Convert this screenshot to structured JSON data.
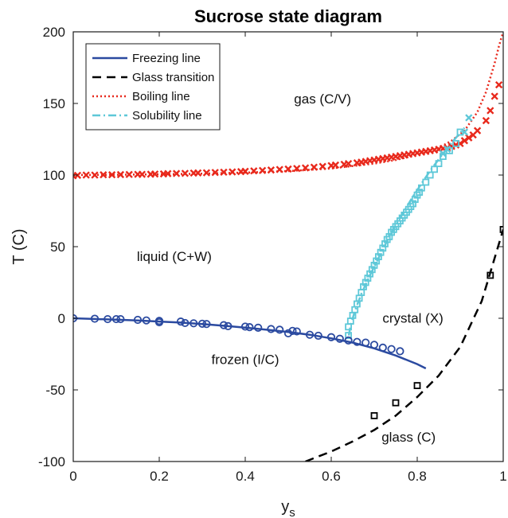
{
  "chart_data": {
    "type": "scatter",
    "title": "Sucrose state diagram",
    "xlabel": "y",
    "xlabel_sub": "s",
    "ylabel": "T (C)",
    "xlim": [
      0,
      1
    ],
    "ylim": [
      -100,
      200
    ],
    "xticks": [
      0,
      0.2,
      0.4,
      0.6,
      0.8,
      1
    ],
    "xtick_labels": [
      "0",
      "0.2",
      "0.4",
      "0.6",
      "0.8",
      "1"
    ],
    "yticks": [
      -100,
      -50,
      0,
      50,
      100,
      150,
      200
    ],
    "ytick_labels": [
      "-100",
      "-50",
      "0",
      "50",
      "100",
      "150",
      "200"
    ],
    "grid": false,
    "legend_position": "top-left",
    "legend": [
      {
        "label": "Freezing line",
        "color": "#2b4aa0",
        "style": "solid"
      },
      {
        "label": "Glass transition",
        "color": "#000000",
        "style": "dashed"
      },
      {
        "label": "Boiling line",
        "color": "#e8291c",
        "style": "dotted"
      },
      {
        "label": "Solubility line",
        "color": "#5ec8d8",
        "style": "dashdot"
      }
    ],
    "regions": [
      {
        "label": "gas (C/V)",
        "x": 0.58,
        "y": 150
      },
      {
        "label": "liquid (C+W)",
        "x": 0.235,
        "y": 40
      },
      {
        "label": "crystal (X)",
        "x": 0.79,
        "y": -3
      },
      {
        "label": "frozen (I/C)",
        "x": 0.4,
        "y": -32
      },
      {
        "label": "glass (C)",
        "x": 0.78,
        "y": -86
      }
    ],
    "series": [
      {
        "name": "Freezing line",
        "kind": "line",
        "color": "#2b4aa0",
        "style": "solid",
        "x": [
          0,
          0.05,
          0.1,
          0.15,
          0.2,
          0.25,
          0.3,
          0.35,
          0.4,
          0.45,
          0.5,
          0.55,
          0.6,
          0.65,
          0.7,
          0.75,
          0.8,
          0.82
        ],
        "y": [
          0,
          -0.5,
          -1,
          -1.5,
          -2.3,
          -3,
          -4,
          -5.2,
          -6.5,
          -8,
          -9.6,
          -11.5,
          -14,
          -17,
          -21,
          -26,
          -32,
          -35
        ]
      },
      {
        "name": "Freezing data",
        "kind": "markers",
        "marker": "circle",
        "color": "#2b4aa0",
        "x": [
          0,
          0.05,
          0.08,
          0.1,
          0.11,
          0.15,
          0.17,
          0.2,
          0.2,
          0.25,
          0.26,
          0.28,
          0.3,
          0.31,
          0.35,
          0.36,
          0.4,
          0.41,
          0.43,
          0.46,
          0.48,
          0.5,
          0.51,
          0.52,
          0.55,
          0.57,
          0.6,
          0.62,
          0.64,
          0.66,
          0.68,
          0.7,
          0.72,
          0.74,
          0.76
        ],
        "y": [
          0,
          -0.3,
          -0.6,
          -0.6,
          -0.6,
          -1.1,
          -1.5,
          -1.8,
          -2.8,
          -2.3,
          -3.3,
          -3.5,
          -3.8,
          -4,
          -4.8,
          -5.5,
          -5.8,
          -6.2,
          -6.6,
          -7.5,
          -8,
          -10.5,
          -8.8,
          -9.2,
          -11.5,
          -12.2,
          -13.2,
          -14.3,
          -15.5,
          -16.5,
          -17,
          -18.5,
          -20.5,
          -21.5,
          -23
        ]
      },
      {
        "name": "Glass transition",
        "kind": "line",
        "color": "#000000",
        "style": "dashed",
        "x": [
          0.54,
          0.6,
          0.65,
          0.7,
          0.75,
          0.8,
          0.85,
          0.9,
          0.95,
          1.0
        ],
        "y": [
          -100,
          -93,
          -86,
          -78,
          -68,
          -55,
          -40,
          -20,
          12,
          62
        ]
      },
      {
        "name": "Glass data",
        "kind": "markers",
        "marker": "square",
        "color": "#000000",
        "x": [
          0.7,
          0.75,
          0.8,
          0.97,
          1.0
        ],
        "y": [
          -68,
          -59,
          -47,
          30,
          62
        ]
      },
      {
        "name": "Boiling line",
        "kind": "line",
        "color": "#e8291c",
        "style": "dotted",
        "x": [
          0,
          0.1,
          0.2,
          0.3,
          0.4,
          0.5,
          0.6,
          0.7,
          0.75,
          0.8,
          0.85,
          0.88,
          0.91,
          0.94,
          0.96,
          0.98,
          0.99,
          1.0
        ],
        "y": [
          100,
          100.2,
          100.5,
          101,
          101.7,
          102.8,
          104.6,
          108,
          110.5,
          114,
          119,
          124,
          131,
          144,
          158,
          178,
          190,
          200
        ]
      },
      {
        "name": "Boiling data",
        "kind": "markers",
        "marker": "x",
        "color": "#e8291c",
        "x": [
          0,
          0.01,
          0.03,
          0.05,
          0.07,
          0.09,
          0.11,
          0.13,
          0.15,
          0.16,
          0.18,
          0.19,
          0.21,
          0.22,
          0.24,
          0.26,
          0.28,
          0.29,
          0.31,
          0.33,
          0.35,
          0.37,
          0.39,
          0.4,
          0.42,
          0.44,
          0.46,
          0.48,
          0.5,
          0.52,
          0.54,
          0.56,
          0.58,
          0.6,
          0.61,
          0.63,
          0.64,
          0.66,
          0.67,
          0.68,
          0.69,
          0.7,
          0.71,
          0.72,
          0.73,
          0.74,
          0.75,
          0.76,
          0.77,
          0.78,
          0.79,
          0.8,
          0.81,
          0.82,
          0.83,
          0.84,
          0.85,
          0.86,
          0.87,
          0.88,
          0.89,
          0.9,
          0.91,
          0.92,
          0.93,
          0.94,
          0.96,
          0.97,
          0.98,
          0.99
        ],
        "y": [
          99.5,
          99.8,
          100,
          100,
          100.2,
          100.2,
          100.3,
          100.4,
          100.5,
          100.5,
          100.6,
          100.7,
          100.8,
          101,
          101.1,
          101.2,
          101.4,
          101.5,
          101.6,
          101.8,
          102,
          102.2,
          102.4,
          102.6,
          102.9,
          103.2,
          103.5,
          103.9,
          104.2,
          104.6,
          105,
          105.5,
          106,
          106.6,
          107,
          107.5,
          108,
          108.5,
          109,
          109.5,
          110,
          110.5,
          111,
          111.5,
          112,
          112.5,
          113,
          113.5,
          114,
          114.5,
          115,
          115.5,
          116,
          116.5,
          117,
          117.5,
          118,
          118.5,
          119,
          120,
          121,
          122,
          124,
          126,
          128,
          131,
          138,
          145,
          155,
          163
        ]
      },
      {
        "name": "Solubility line",
        "kind": "line",
        "color": "#5ec8d8",
        "style": "dashdot",
        "x": [
          0.641,
          0.645,
          0.655,
          0.67,
          0.69,
          0.71,
          0.73,
          0.75,
          0.77,
          0.79,
          0.81,
          0.83,
          0.85,
          0.87,
          0.89,
          0.91
        ],
        "y": [
          -12,
          -5,
          5,
          17,
          30,
          42,
          54,
          65,
          75,
          85,
          94,
          103,
          111,
          119,
          126,
          133
        ]
      },
      {
        "name": "Solubility data",
        "kind": "markers",
        "marker": "square",
        "color": "#5ec8d8",
        "x": [
          0.64,
          0.64,
          0.645,
          0.65,
          0.655,
          0.66,
          0.665,
          0.67,
          0.675,
          0.68,
          0.685,
          0.69,
          0.695,
          0.7,
          0.705,
          0.71,
          0.715,
          0.72,
          0.725,
          0.73,
          0.735,
          0.74,
          0.745,
          0.75,
          0.755,
          0.76,
          0.765,
          0.77,
          0.775,
          0.78,
          0.785,
          0.79,
          0.795,
          0.8,
          0.805,
          0.81,
          0.82,
          0.83,
          0.84,
          0.85,
          0.86,
          0.875,
          0.89,
          0.9
        ],
        "y": [
          -12,
          -6,
          -2,
          2,
          6,
          10,
          14,
          18,
          22,
          25,
          28,
          31,
          34,
          37,
          40,
          43,
          46,
          49,
          52,
          55,
          57,
          60,
          62,
          64,
          66,
          68,
          70,
          72,
          74,
          76,
          78,
          80,
          83,
          86,
          88,
          91,
          95,
          100,
          104,
          108,
          113,
          117,
          122,
          130
        ]
      },
      {
        "name": "Solubility data (x)",
        "kind": "markers",
        "marker": "x",
        "color": "#5ec8d8",
        "x": [
          0.86,
          0.87,
          0.91,
          0.92
        ],
        "y": [
          115,
          118,
          130,
          140
        ]
      }
    ]
  }
}
